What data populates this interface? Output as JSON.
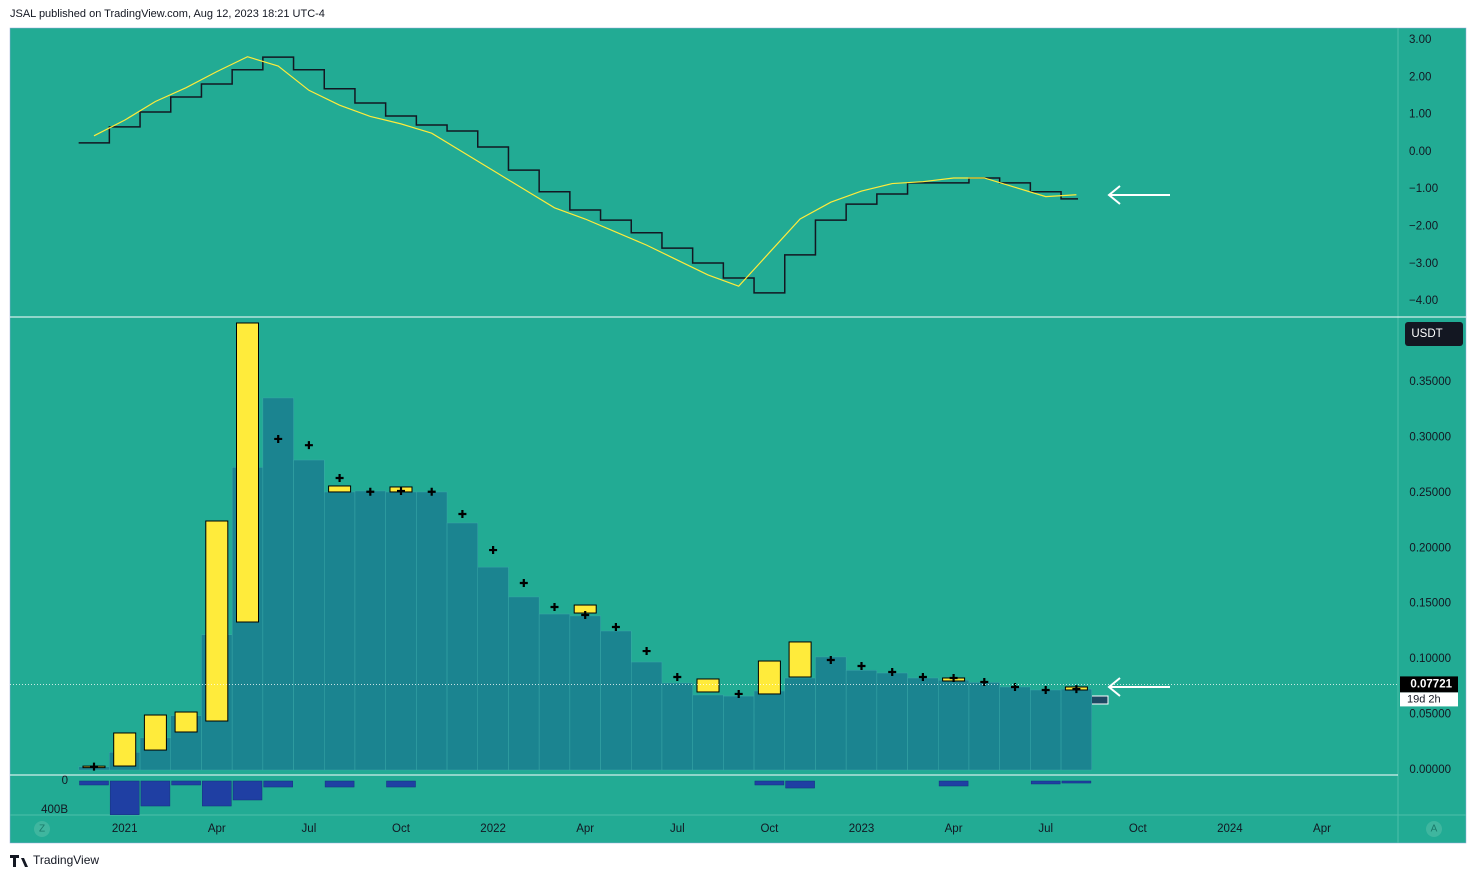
{
  "header": "JSAL published on TradingView.com, Aug 12, 2023 18:21 UTC-4",
  "footer": "TradingView",
  "buttons": [
    "Z",
    "A"
  ],
  "chart_data": [
    {
      "type": "line",
      "ylim": [
        -4.4,
        3.32
      ],
      "yticks": [
        {
          "value": 3,
          "label": "3.00"
        },
        {
          "value": 2,
          "label": "2.00"
        },
        {
          "value": 1,
          "label": "1.00"
        },
        {
          "value": 0,
          "label": "0.00"
        },
        {
          "value": -1,
          "label": "−1.00"
        },
        {
          "value": -2,
          "label": "−2.00"
        },
        {
          "value": -3,
          "label": "−3.00"
        },
        {
          "value": -4,
          "label": "−4.00"
        }
      ],
      "series": [
        {
          "color": "#131722",
          "step": true,
          "values": [
            0.24,
            0.67,
            1.07,
            1.47,
            1.82,
            2.2,
            2.54,
            2.2,
            1.69,
            1.31,
            0.96,
            0.72,
            0.56,
            0.13,
            -0.49,
            -1.07,
            -1.56,
            -1.83,
            -2.17,
            -2.58,
            -2.98,
            -3.38,
            -3.78,
            -2.76,
            -1.83,
            -1.4,
            -1.13,
            -0.83,
            -0.83,
            -0.7,
            -0.83,
            -1.07,
            -1.26,
            null,
            null,
            null,
            null,
            null,
            null,
            null,
            null
          ]
        },
        {
          "color": "#ffeb3b",
          "step": false,
          "values": [
            0.43,
            0.85,
            1.35,
            1.72,
            2.15,
            2.55,
            2.3,
            1.65,
            1.25,
            0.95,
            0.75,
            0.5,
            0.0,
            -0.5,
            -1.0,
            -1.5,
            -1.8,
            -2.15,
            -2.5,
            -2.9,
            -3.3,
            -3.6,
            -2.7,
            -1.8,
            -1.35,
            -1.05,
            -0.85,
            -0.8,
            -0.7,
            -0.7,
            -0.95,
            -1.2,
            -1.15,
            null,
            null,
            null,
            null,
            null,
            null,
            null,
            null
          ]
        }
      ]
    },
    {
      "type": "candlestick",
      "currency": "USDT",
      "ylim": [
        -0.0045,
        0.4077
      ],
      "yticks": [
        {
          "value": 0.35,
          "label": "0.35000"
        },
        {
          "value": 0.3,
          "label": "0.30000"
        },
        {
          "value": 0.25,
          "label": "0.25000"
        },
        {
          "value": 0.2,
          "label": "0.20000"
        },
        {
          "value": 0.15,
          "label": "0.15000"
        },
        {
          "value": 0.1,
          "label": "0.10000"
        },
        {
          "value": 0.05,
          "label": "0.05000"
        },
        {
          "value": 0,
          "label": "0.00000"
        }
      ],
      "last_price": 0.07721,
      "countdown": "19d 2h",
      "columns": {
        "color": "#1b8490",
        "values": [
          0.003,
          0.016,
          0.029,
          0.049,
          0.122,
          0.273,
          0.3356,
          0.2796,
          0.2508,
          0.2517,
          0.2508,
          0.2508,
          0.2228,
          0.183,
          0.1561,
          0.1407,
          0.139,
          0.1254,
          0.0974,
          0.0785,
          0.0677,
          0.0667,
          0.0713,
          0.083,
          0.102,
          0.09,
          0.0875,
          0.083,
          0.081,
          0.079,
          0.0749,
          0.0722,
          0.073,
          null,
          null,
          null,
          null,
          null,
          null,
          null,
          null
        ]
      },
      "markers": {
        "color": "#000000",
        "values": [
          0.003,
          null,
          null,
          null,
          null,
          null,
          0.2986,
          0.293,
          0.2634,
          0.251,
          0.2517,
          0.251,
          0.2309,
          0.1984,
          0.1687,
          0.147,
          0.1398,
          0.129,
          0.1073,
          0.0839,
          null,
          0.0686,
          null,
          null,
          0.0992,
          0.0938,
          0.0884,
          0.0839,
          0.083,
          0.0794,
          0.0749,
          0.0722,
          0.073,
          null,
          null,
          null,
          null,
          null,
          null,
          null,
          null
        ]
      },
      "candles": {
        "color": "#ffeb3b",
        "open": [
          0.0025,
          0.0036,
          0.018,
          0.0343,
          0.0442,
          0.1335,
          null,
          null,
          0.2508,
          null,
          0.2508,
          null,
          null,
          null,
          null,
          null,
          0.1416,
          null,
          null,
          null,
          0.0704,
          null,
          0.0686,
          0.0839,
          null,
          null,
          null,
          null,
          0.0803,
          null,
          null,
          null,
          0.0722,
          null,
          null,
          null,
          null,
          null,
          null,
          null,
          null
        ],
        "close": [
          0.0035,
          0.0334,
          0.0496,
          0.0523,
          0.2246,
          0.4032,
          null,
          null,
          0.2562,
          null,
          0.2553,
          null,
          null,
          null,
          null,
          null,
          0.1488,
          null,
          null,
          null,
          0.0821,
          null,
          0.0983,
          0.1155,
          null,
          null,
          null,
          null,
          0.083,
          null,
          null,
          null,
          0.0749,
          null,
          null,
          null,
          null,
          null,
          null,
          null,
          null
        ]
      }
    },
    {
      "type": "bar",
      "inverted": true,
      "color": "#1f3fa3",
      "ylim": [
        -83000000000,
        469000000000
      ],
      "yticks": [
        0,
        {
          "value": 400000000000,
          "label": "400B"
        }
      ],
      "values": [
        55000000000,
        465000000000,
        345000000000,
        55000000000,
        345000000000,
        262000000000,
        83000000000,
        null,
        83000000000,
        null,
        83000000000,
        null,
        null,
        null,
        null,
        null,
        null,
        null,
        null,
        null,
        null,
        null,
        55000000000,
        97000000000,
        null,
        null,
        null,
        null,
        69000000000,
        null,
        null,
        41000000000,
        28000000000,
        null,
        null,
        null,
        null,
        null,
        null,
        null,
        null
      ],
      "categories": [
        null,
        "2021",
        null,
        null,
        "Apr",
        null,
        null,
        "Jul",
        null,
        null,
        "Oct",
        null,
        null,
        "2022",
        null,
        null,
        "Apr",
        null,
        null,
        "Jul",
        null,
        null,
        "Oct",
        null,
        null,
        "2023",
        null,
        null,
        "Apr",
        null,
        null,
        "Jul",
        null,
        null,
        "Oct",
        null,
        null,
        "2024",
        null,
        null,
        "Apr"
      ]
    }
  ]
}
